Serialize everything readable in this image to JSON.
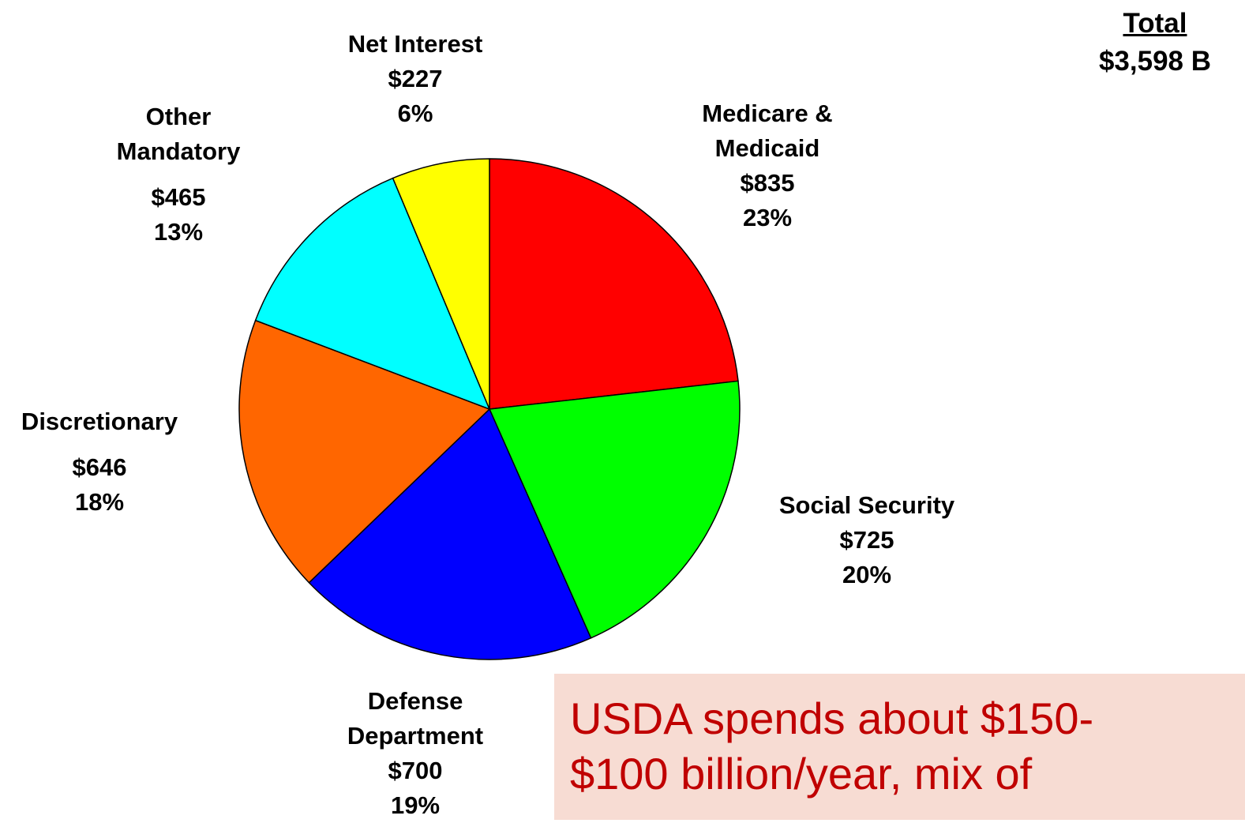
{
  "chart_data": {
    "type": "pie",
    "total": {
      "heading": "Total",
      "value": "$3,598 B"
    },
    "slices": [
      {
        "name": "Medicare & Medicaid",
        "name_lines": [
          "Medicare &",
          "Medicaid"
        ],
        "value": 835,
        "value_label": "$835",
        "percent_label": "23%",
        "color": "#ff0000"
      },
      {
        "name": "Social Security",
        "name_lines": [
          "Social Security"
        ],
        "value": 725,
        "value_label": "$725",
        "percent_label": "20%",
        "color": "#00ff00"
      },
      {
        "name": "Defense Department",
        "name_lines": [
          "Defense",
          "Department"
        ],
        "value": 700,
        "value_label": "$700",
        "percent_label": "19%",
        "color": "#0000ff"
      },
      {
        "name": "Discretionary",
        "name_lines": [
          "Discretionary"
        ],
        "value": 646,
        "value_label": "$646",
        "percent_label": "18%",
        "color": "#ff6600"
      },
      {
        "name": "Other Mandatory",
        "name_lines": [
          "Other",
          "Mandatory"
        ],
        "value": 465,
        "value_label": "$465",
        "percent_label": "13%",
        "color": "#00ffff"
      },
      {
        "name": "Net Interest",
        "name_lines": [
          "Net Interest"
        ],
        "value": 227,
        "value_label": "$227",
        "percent_label": "6%",
        "color": "#ffff00"
      }
    ]
  },
  "callout": {
    "line1": "USDA spends about $150-",
    "line2": "$100 billion/year, mix of"
  }
}
